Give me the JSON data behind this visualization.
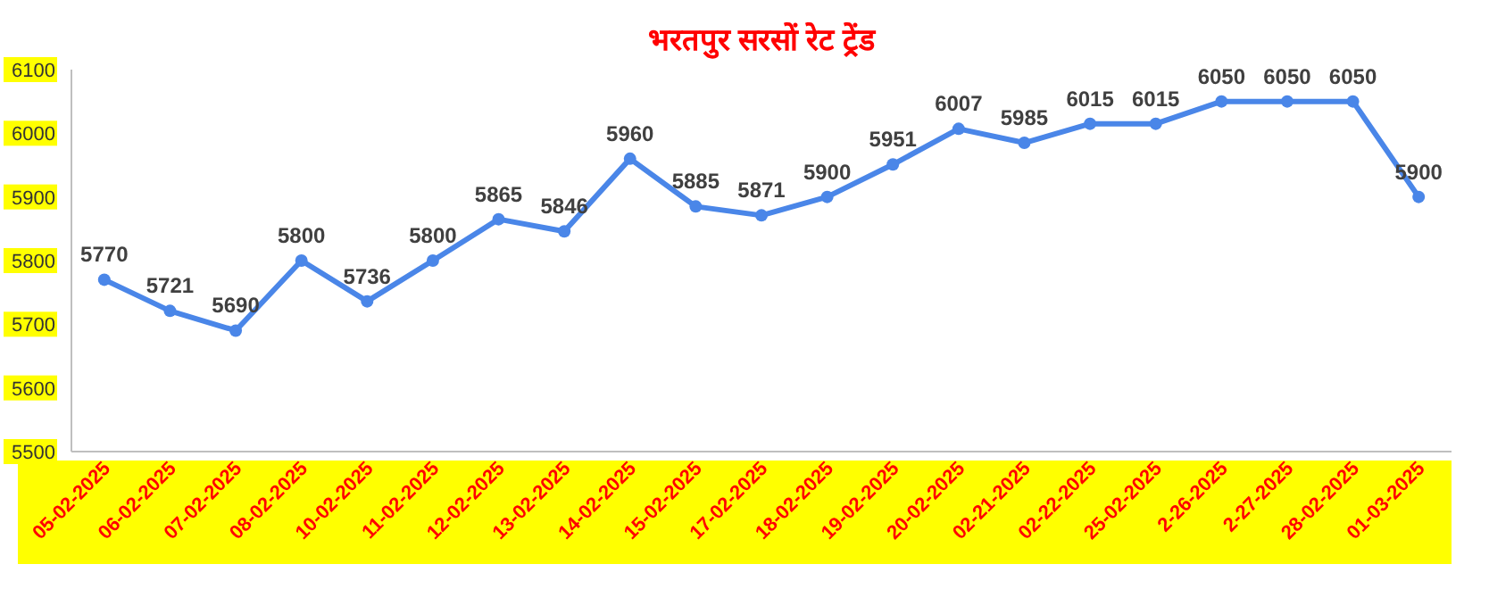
{
  "chart_data": {
    "type": "line",
    "title": "भरतपुर सरसों रेट ट्रेंड",
    "categories": [
      "05-02-2025",
      "06-02-2025",
      "07-02-2025",
      "08-02-2025",
      "10-02-2025",
      "11-02-2025",
      "12-02-2025",
      "13-02-2025",
      "14-02-2025",
      "15-02-2025",
      "17-02-2025",
      "18-02-2025",
      "19-02-2025",
      "20-02-2025",
      "02-21-2025",
      "02-22-2025",
      "25-02-2025",
      "2-26-2025",
      "2-27-2025",
      "28-02-2025",
      "01-03-2025"
    ],
    "series": [
      {
        "color": "#4a86e8",
        "values": [
          5770,
          5721,
          5690,
          5800,
          5736,
          5800,
          5865,
          5846,
          5960,
          5885,
          5871,
          5900,
          5951,
          6007,
          5985,
          6015,
          6015,
          6050,
          6050,
          6050,
          5900
        ]
      }
    ],
    "ylim": [
      5500,
      6100
    ],
    "yticks": [
      5500,
      5600,
      5700,
      5800,
      5900,
      6000,
      6100
    ],
    "data_labels": true,
    "marker": "circle",
    "grid": false
  }
}
